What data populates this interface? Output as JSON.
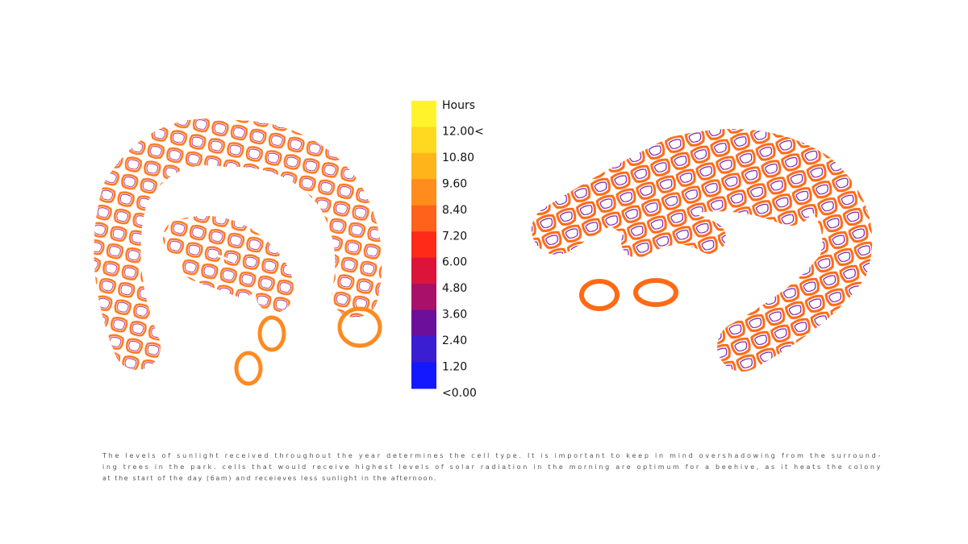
{
  "legend": {
    "title": "Hours",
    "labels": [
      "12.00<",
      "10.80",
      "9.60",
      "8.40",
      "7.20",
      "6.00",
      "4.80",
      "3.60",
      "2.40",
      "1.20",
      "<0.00"
    ],
    "colors": [
      "#fff42c",
      "#ffd820",
      "#ffb41a",
      "#ff8c1c",
      "#ff621a",
      "#ff2a18",
      "#dc143a",
      "#a8106a",
      "#6c109c",
      "#3a1ed2",
      "#1418ff"
    ]
  },
  "caption": {
    "lines": [
      "The levels of sunlight received throughout the year determines the cell type. It is important to keep in mind overshadowing from the surround-",
      "ing trees in the park. cells that would receive highest levels of solar radiation in the morning are optimum for a beehive, as it heats the colony",
      "at the start of the day (6am) and receieves less sunlight in the afternoon."
    ]
  }
}
